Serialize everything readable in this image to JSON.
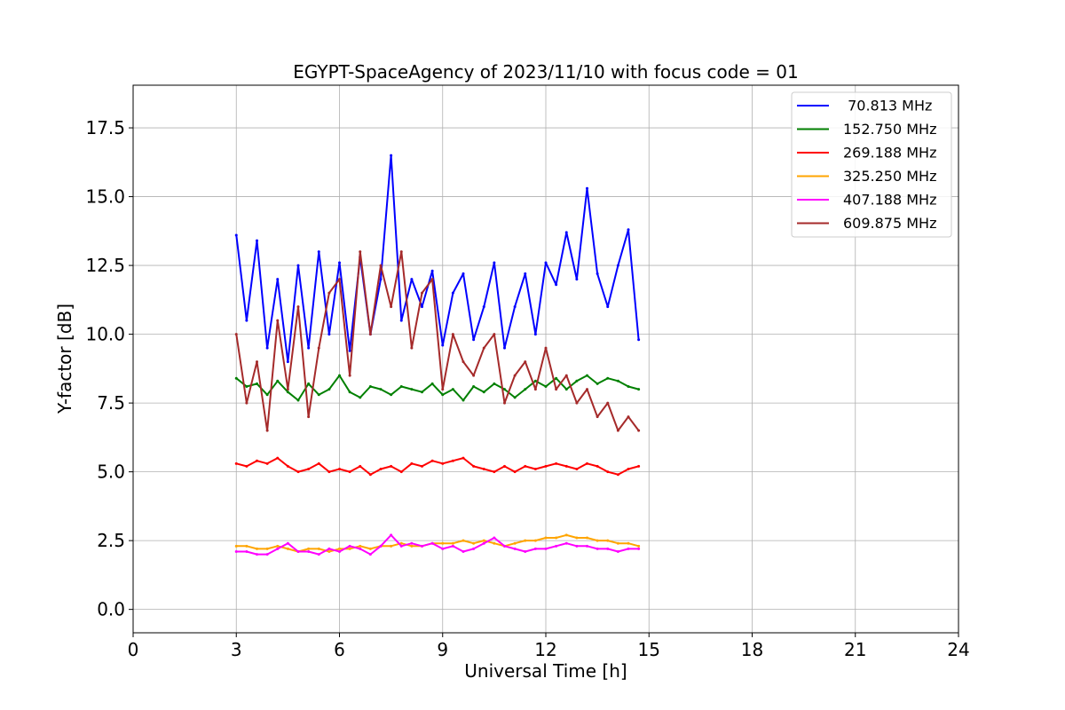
{
  "chart_data": {
    "type": "line",
    "title": "EGYPT-SpaceAgency of 2023/11/10 with focus code = 01",
    "xlabel": "Universal Time [h]",
    "ylabel": "Y-factor [dB]",
    "xlim": [
      0,
      24
    ],
    "ylim": [
      -0.85,
      19.05
    ],
    "xticks": [
      0,
      3,
      6,
      9,
      12,
      15,
      18,
      21,
      24
    ],
    "xtick_labels": [
      "0",
      "3",
      "6",
      "9",
      "12",
      "15",
      "18",
      "21",
      "24"
    ],
    "yticks": [
      0.0,
      2.5,
      5.0,
      7.5,
      10.0,
      12.5,
      15.0,
      17.5
    ],
    "ytick_labels": [
      "0.0",
      "2.5",
      "5.0",
      "7.5",
      "10.0",
      "12.5",
      "15.0",
      "17.5"
    ],
    "grid": true,
    "legend_position": "top-right",
    "series": [
      {
        "name": " 70.813 MHz",
        "color": "#0000ff",
        "x": [
          3.0,
          3.3,
          3.6,
          3.9,
          4.2,
          4.5,
          4.8,
          5.1,
          5.4,
          5.7,
          6.0,
          6.3,
          6.6,
          6.9,
          7.2,
          7.5,
          7.8,
          8.1,
          8.4,
          8.7,
          9.0,
          9.3,
          9.6,
          9.9,
          10.2,
          10.5,
          10.8,
          11.1,
          11.4,
          11.7,
          12.0,
          12.3,
          12.6,
          12.9,
          13.2,
          13.5,
          13.8,
          14.1,
          14.4,
          14.7
        ],
        "y": [
          13.6,
          10.5,
          13.4,
          9.5,
          12.0,
          9.0,
          12.5,
          9.5,
          13.0,
          10.0,
          12.6,
          9.4,
          12.8,
          10.0,
          12.0,
          16.5,
          10.5,
          12.0,
          11.0,
          12.3,
          9.6,
          11.5,
          12.2,
          9.8,
          11.0,
          12.6,
          9.5,
          11.0,
          12.2,
          10.0,
          12.6,
          11.8,
          13.7,
          12.0,
          15.3,
          12.2,
          11.0,
          12.5,
          13.8,
          9.8
        ]
      },
      {
        "name": "152.750 MHz",
        "color": "#008000",
        "x": [
          3.0,
          3.3,
          3.6,
          3.9,
          4.2,
          4.5,
          4.8,
          5.1,
          5.4,
          5.7,
          6.0,
          6.3,
          6.6,
          6.9,
          7.2,
          7.5,
          7.8,
          8.1,
          8.4,
          8.7,
          9.0,
          9.3,
          9.6,
          9.9,
          10.2,
          10.5,
          10.8,
          11.1,
          11.4,
          11.7,
          12.0,
          12.3,
          12.6,
          12.9,
          13.2,
          13.5,
          13.8,
          14.1,
          14.4,
          14.7
        ],
        "y": [
          8.4,
          8.1,
          8.2,
          7.8,
          8.3,
          7.9,
          7.6,
          8.2,
          7.8,
          8.0,
          8.5,
          7.9,
          7.7,
          8.1,
          8.0,
          7.8,
          8.1,
          8.0,
          7.9,
          8.2,
          7.8,
          8.0,
          7.6,
          8.1,
          7.9,
          8.2,
          8.0,
          7.7,
          8.0,
          8.3,
          8.1,
          8.4,
          8.0,
          8.3,
          8.5,
          8.2,
          8.4,
          8.3,
          8.1,
          8.0
        ]
      },
      {
        "name": "269.188 MHz",
        "color": "#ff0000",
        "x": [
          3.0,
          3.3,
          3.6,
          3.9,
          4.2,
          4.5,
          4.8,
          5.1,
          5.4,
          5.7,
          6.0,
          6.3,
          6.6,
          6.9,
          7.2,
          7.5,
          7.8,
          8.1,
          8.4,
          8.7,
          9.0,
          9.3,
          9.6,
          9.9,
          10.2,
          10.5,
          10.8,
          11.1,
          11.4,
          11.7,
          12.0,
          12.3,
          12.6,
          12.9,
          13.2,
          13.5,
          13.8,
          14.1,
          14.4,
          14.7
        ],
        "y": [
          5.3,
          5.2,
          5.4,
          5.3,
          5.5,
          5.2,
          5.0,
          5.1,
          5.3,
          5.0,
          5.1,
          5.0,
          5.2,
          4.9,
          5.1,
          5.2,
          5.0,
          5.3,
          5.2,
          5.4,
          5.3,
          5.4,
          5.5,
          5.2,
          5.1,
          5.0,
          5.2,
          5.0,
          5.2,
          5.1,
          5.2,
          5.3,
          5.2,
          5.1,
          5.3,
          5.2,
          5.0,
          4.9,
          5.1,
          5.2
        ]
      },
      {
        "name": "325.250 MHz",
        "color": "#ffa500",
        "x": [
          3.0,
          3.3,
          3.6,
          3.9,
          4.2,
          4.5,
          4.8,
          5.1,
          5.4,
          5.7,
          6.0,
          6.3,
          6.6,
          6.9,
          7.2,
          7.5,
          7.8,
          8.1,
          8.4,
          8.7,
          9.0,
          9.3,
          9.6,
          9.9,
          10.2,
          10.5,
          10.8,
          11.1,
          11.4,
          11.7,
          12.0,
          12.3,
          12.6,
          12.9,
          13.2,
          13.5,
          13.8,
          14.1,
          14.4,
          14.7
        ],
        "y": [
          2.3,
          2.3,
          2.2,
          2.2,
          2.3,
          2.2,
          2.1,
          2.2,
          2.2,
          2.1,
          2.2,
          2.2,
          2.3,
          2.2,
          2.3,
          2.3,
          2.4,
          2.3,
          2.3,
          2.4,
          2.4,
          2.4,
          2.5,
          2.4,
          2.5,
          2.4,
          2.3,
          2.4,
          2.5,
          2.5,
          2.6,
          2.6,
          2.7,
          2.6,
          2.6,
          2.5,
          2.5,
          2.4,
          2.4,
          2.3
        ]
      },
      {
        "name": "407.188 MHz",
        "color": "#ff00ff",
        "x": [
          3.0,
          3.3,
          3.6,
          3.9,
          4.2,
          4.5,
          4.8,
          5.1,
          5.4,
          5.7,
          6.0,
          6.3,
          6.6,
          6.9,
          7.2,
          7.5,
          7.8,
          8.1,
          8.4,
          8.7,
          9.0,
          9.3,
          9.6,
          9.9,
          10.2,
          10.5,
          10.8,
          11.1,
          11.4,
          11.7,
          12.0,
          12.3,
          12.6,
          12.9,
          13.2,
          13.5,
          13.8,
          14.1,
          14.4,
          14.7
        ],
        "y": [
          2.1,
          2.1,
          2.0,
          2.0,
          2.2,
          2.4,
          2.1,
          2.1,
          2.0,
          2.2,
          2.1,
          2.3,
          2.2,
          2.0,
          2.3,
          2.7,
          2.3,
          2.4,
          2.3,
          2.4,
          2.2,
          2.3,
          2.1,
          2.2,
          2.4,
          2.6,
          2.3,
          2.2,
          2.1,
          2.2,
          2.2,
          2.3,
          2.4,
          2.3,
          2.3,
          2.2,
          2.2,
          2.1,
          2.2,
          2.2
        ]
      },
      {
        "name": "609.875 MHz",
        "color": "#a52a2a",
        "x": [
          3.0,
          3.3,
          3.6,
          3.9,
          4.2,
          4.5,
          4.8,
          5.1,
          5.4,
          5.7,
          6.0,
          6.3,
          6.6,
          6.9,
          7.2,
          7.5,
          7.8,
          8.1,
          8.4,
          8.7,
          9.0,
          9.3,
          9.6,
          9.9,
          10.2,
          10.5,
          10.8,
          11.1,
          11.4,
          11.7,
          12.0,
          12.3,
          12.6,
          12.9,
          13.2,
          13.5,
          13.8,
          14.1,
          14.4,
          14.7
        ],
        "y": [
          10.0,
          7.5,
          9.0,
          6.5,
          10.5,
          8.0,
          11.0,
          7.0,
          9.5,
          11.5,
          12.0,
          8.5,
          13.0,
          10.0,
          12.5,
          11.0,
          13.0,
          9.5,
          11.5,
          12.0,
          8.0,
          10.0,
          9.0,
          8.5,
          9.5,
          10.0,
          7.5,
          8.5,
          9.0,
          8.0,
          9.5,
          8.0,
          8.5,
          7.5,
          8.0,
          7.0,
          7.5,
          6.5,
          7.0,
          6.5
        ]
      }
    ]
  }
}
